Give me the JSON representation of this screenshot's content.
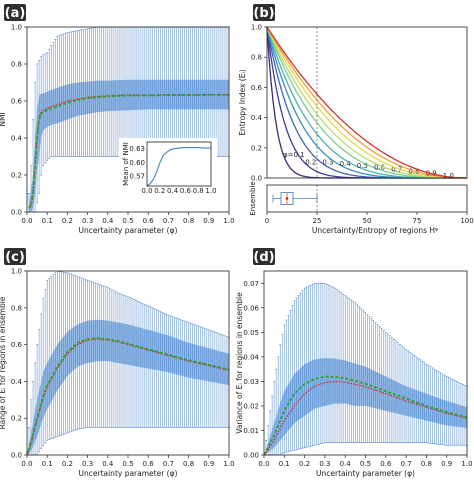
{
  "colors": {
    "errorbar": "#4f86c6",
    "iqr_band": "#3d7fd0",
    "mean_line": "#2ca02c",
    "median_line": "#d62728",
    "panel_tag_bg": "#2f2f2f",
    "inset_line": "#3d86c8"
  },
  "chart_data": [
    {
      "panel": "(a)",
      "type": "line",
      "xlabel": "Uncertainty parameter (φ)",
      "ylabel": "NMI",
      "xlim": [
        0.0,
        1.0
      ],
      "ylim": [
        0.0,
        1.0
      ],
      "xticks": [
        "0.0",
        "0.1",
        "0.2",
        "0.3",
        "0.4",
        "0.5",
        "0.6",
        "0.7",
        "0.8",
        "0.9",
        "1.0"
      ],
      "yticks": [
        "0.0",
        "0.2",
        "0.4",
        "0.6",
        "0.8",
        "1.0"
      ],
      "x": [
        0.01,
        0.02,
        0.03,
        0.04,
        0.05,
        0.06,
        0.07,
        0.08,
        0.1,
        0.12,
        0.15,
        0.2,
        0.25,
        0.3,
        0.35,
        0.4,
        0.5,
        0.6,
        0.7,
        0.8,
        0.9,
        1.0
      ],
      "series": [
        {
          "role": "mean",
          "values": [
            0.02,
            0.04,
            0.1,
            0.25,
            0.4,
            0.5,
            0.53,
            0.54,
            0.55,
            0.56,
            0.57,
            0.59,
            0.605,
            0.615,
            0.62,
            0.625,
            0.63,
            0.63,
            0.632,
            0.632,
            0.633,
            0.633
          ]
        },
        {
          "role": "median",
          "values": [
            0.02,
            0.04,
            0.1,
            0.26,
            0.41,
            0.51,
            0.54,
            0.55,
            0.56,
            0.57,
            0.58,
            0.6,
            0.61,
            0.62,
            0.625,
            0.628,
            0.632,
            0.632,
            0.633,
            0.633,
            0.634,
            0.634
          ]
        }
      ],
      "band_low": [
        0.0,
        0.0,
        0.02,
        0.1,
        0.22,
        0.3,
        0.4,
        0.44,
        0.46,
        0.47,
        0.48,
        0.5,
        0.52,
        0.53,
        0.54,
        0.545,
        0.55,
        0.555,
        0.555,
        0.555,
        0.555,
        0.555
      ],
      "band_high": [
        0.05,
        0.12,
        0.2,
        0.4,
        0.55,
        0.63,
        0.64,
        0.64,
        0.65,
        0.66,
        0.67,
        0.69,
        0.7,
        0.705,
        0.71,
        0.71,
        0.715,
        0.715,
        0.715,
        0.715,
        0.715,
        0.715
      ],
      "err_low": [
        0.0,
        0.0,
        0.0,
        0.0,
        0.05,
        0.1,
        0.2,
        0.25,
        0.28,
        0.3,
        0.3,
        0.3,
        0.3,
        0.3,
        0.3,
        0.3,
        0.3,
        0.3,
        0.3,
        0.3,
        0.3,
        0.3
      ],
      "err_high": [
        0.1,
        0.25,
        0.5,
        0.7,
        0.8,
        0.82,
        0.84,
        0.85,
        0.86,
        0.9,
        0.95,
        0.97,
        0.98,
        0.99,
        1.0,
        1.0,
        1.0,
        1.0,
        1.0,
        1.0,
        1.0,
        1.0
      ],
      "inset": {
        "ylabel": "Mean of NMI",
        "xticks": [
          "0.0",
          "0.2",
          "0.4",
          "0.6",
          "0.8",
          "1.0"
        ],
        "yticks": [
          "0.57",
          "0.60",
          "0.63"
        ],
        "ylim": [
          0.55,
          0.645
        ],
        "x": [
          0.0,
          0.05,
          0.1,
          0.15,
          0.2,
          0.25,
          0.3,
          0.35,
          0.4,
          0.5,
          0.6,
          0.7,
          0.8,
          0.9,
          1.0
        ],
        "values": [
          0.55,
          0.555,
          0.565,
          0.58,
          0.6,
          0.615,
          0.622,
          0.627,
          0.63,
          0.632,
          0.633,
          0.633,
          0.633,
          0.632,
          0.632
        ]
      }
    },
    {
      "panel": "(b)",
      "type": "line",
      "xlabel": "Uncertainty/Entropy of regions Hᵠ",
      "ylabel": "Entropy Index (Eᵢ)",
      "xlim": [
        0,
        100
      ],
      "ylim": [
        0.0,
        1.0
      ],
      "xticks": [
        "0",
        "25",
        "50",
        "75",
        "100"
      ],
      "yticks": [
        "0.0",
        "0.2",
        "0.4",
        "0.6",
        "0.8",
        "1.0"
      ],
      "vline_x": 25,
      "curves": [
        {
          "label": "φ=0.1",
          "k": 22,
          "color": "#3b2a7a"
        },
        {
          "label": "0.2",
          "k": 11,
          "color": "#3f3d9a"
        },
        {
          "label": "0.3",
          "k": 7.2,
          "color": "#3f62b5"
        },
        {
          "label": "0.4",
          "k": 5.4,
          "color": "#3a8ec0"
        },
        {
          "label": "0.5",
          "k": 4.3,
          "color": "#4fb3b0"
        },
        {
          "label": "0.6",
          "k": 3.5,
          "color": "#7ccc8f"
        },
        {
          "label": "0.7",
          "k": 3.0,
          "color": "#b6dd6c"
        },
        {
          "label": "0.8",
          "k": 2.6,
          "color": "#e6d84e"
        },
        {
          "label": "0.9",
          "k": 2.3,
          "color": "#f2a03a"
        },
        {
          "label": "1.0",
          "k": 2.05,
          "color": "#d7302f"
        }
      ],
      "ensemble_label": "Ensemble",
      "ensemble_box": {
        "whisker_low": 3,
        "q1": 7,
        "median": 10,
        "q3": 13,
        "whisker_high": 25
      }
    },
    {
      "panel": "(c)",
      "type": "line",
      "xlabel": "Uncertainty parameter (φ)",
      "ylabel": "Range of Eᵢ for regions in ensemble",
      "xlim": [
        0.0,
        1.0
      ],
      "ylim": [
        0.0,
        1.0
      ],
      "xticks": [
        "0.0",
        "0.1",
        "0.2",
        "0.3",
        "0.4",
        "0.5",
        "0.6",
        "0.7",
        "0.8",
        "0.9",
        "1.0"
      ],
      "yticks": [
        "0.0",
        "0.2",
        "0.4",
        "0.6",
        "0.8",
        "1.0"
      ],
      "x": [
        0.0,
        0.02,
        0.05,
        0.08,
        0.1,
        0.15,
        0.2,
        0.25,
        0.3,
        0.35,
        0.4,
        0.45,
        0.5,
        0.6,
        0.7,
        0.8,
        0.9,
        1.0
      ],
      "series": [
        {
          "role": "mean",
          "values": [
            0.0,
            0.07,
            0.2,
            0.32,
            0.38,
            0.48,
            0.56,
            0.61,
            0.63,
            0.635,
            0.63,
            0.62,
            0.605,
            0.575,
            0.545,
            0.515,
            0.49,
            0.465
          ]
        },
        {
          "role": "median",
          "values": [
            0.0,
            0.06,
            0.19,
            0.31,
            0.37,
            0.47,
            0.55,
            0.6,
            0.625,
            0.63,
            0.625,
            0.615,
            0.6,
            0.57,
            0.54,
            0.51,
            0.485,
            0.46
          ]
        }
      ],
      "band_low": [
        0.0,
        0.02,
        0.1,
        0.2,
        0.25,
        0.35,
        0.43,
        0.48,
        0.5,
        0.51,
        0.51,
        0.5,
        0.49,
        0.47,
        0.45,
        0.42,
        0.4,
        0.38
      ],
      "band_high": [
        0.0,
        0.12,
        0.3,
        0.45,
        0.5,
        0.6,
        0.67,
        0.71,
        0.73,
        0.735,
        0.73,
        0.72,
        0.71,
        0.68,
        0.65,
        0.61,
        0.58,
        0.55
      ],
      "err_low": [
        0.0,
        0.0,
        0.0,
        0.05,
        0.08,
        0.1,
        0.12,
        0.14,
        0.15,
        0.15,
        0.15,
        0.15,
        0.15,
        0.15,
        0.15,
        0.15,
        0.15,
        0.15
      ],
      "err_high": [
        0.0,
        0.3,
        0.6,
        0.85,
        0.95,
        1.0,
        0.99,
        0.97,
        0.95,
        0.93,
        0.91,
        0.88,
        0.86,
        0.81,
        0.76,
        0.72,
        0.68,
        0.64
      ]
    },
    {
      "panel": "(d)",
      "type": "line",
      "xlabel": "Uncertainty parameter (φ)",
      "ylabel": "Variance of Eᵢ for regions in ensemble",
      "xlim": [
        0.0,
        1.0
      ],
      "ylim": [
        0.0,
        0.075
      ],
      "xticks": [
        "0.0",
        "0.1",
        "0.2",
        "0.3",
        "0.4",
        "0.5",
        "0.6",
        "0.7",
        "0.8",
        "0.9",
        "1.0"
      ],
      "yticks": [
        "0.00",
        "0.01",
        "0.02",
        "0.03",
        "0.04",
        "0.05",
        "0.06",
        "0.07"
      ],
      "x": [
        0.0,
        0.02,
        0.05,
        0.08,
        0.1,
        0.15,
        0.2,
        0.25,
        0.3,
        0.35,
        0.4,
        0.45,
        0.5,
        0.6,
        0.7,
        0.8,
        0.9,
        1.0
      ],
      "series": [
        {
          "role": "mean",
          "values": [
            0.0,
            0.003,
            0.008,
            0.014,
            0.018,
            0.025,
            0.029,
            0.031,
            0.032,
            0.0318,
            0.0312,
            0.0302,
            0.029,
            0.026,
            0.023,
            0.02,
            0.0175,
            0.0153
          ]
        },
        {
          "role": "median",
          "values": [
            0.0,
            0.002,
            0.006,
            0.011,
            0.014,
            0.02,
            0.025,
            0.028,
            0.0295,
            0.03,
            0.0297,
            0.0288,
            0.0278,
            0.025,
            0.022,
            0.0195,
            0.017,
            0.015
          ]
        }
      ],
      "band_low": [
        0.0,
        0.001,
        0.003,
        0.006,
        0.008,
        0.013,
        0.016,
        0.019,
        0.02,
        0.021,
        0.021,
        0.02,
        0.02,
        0.018,
        0.016,
        0.014,
        0.012,
        0.011
      ],
      "band_high": [
        0.0,
        0.005,
        0.013,
        0.021,
        0.026,
        0.033,
        0.037,
        0.039,
        0.0395,
        0.0393,
        0.0385,
        0.0372,
        0.036,
        0.032,
        0.028,
        0.025,
        0.022,
        0.0195
      ],
      "err_low": [
        0.0,
        0.0,
        0.0,
        0.0,
        0.001,
        0.002,
        0.003,
        0.004,
        0.005,
        0.005,
        0.005,
        0.005,
        0.005,
        0.005,
        0.005,
        0.005,
        0.004,
        0.004
      ],
      "err_high": [
        0.0,
        0.012,
        0.03,
        0.045,
        0.053,
        0.063,
        0.068,
        0.07,
        0.07,
        0.068,
        0.065,
        0.062,
        0.058,
        0.05,
        0.043,
        0.037,
        0.032,
        0.028
      ]
    }
  ]
}
